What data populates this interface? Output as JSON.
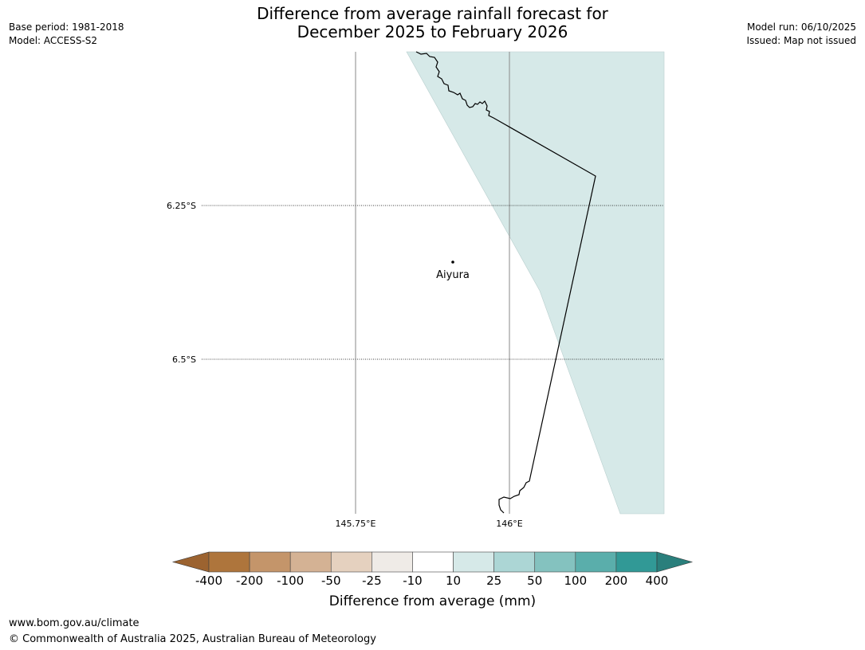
{
  "header": {
    "title_line1": "Difference from average rainfall forecast for",
    "title_line2": "December 2025 to February 2026",
    "base_period": "Base period: 1981-2018",
    "model": "Model: ACCESS-S2",
    "model_run": "Model run: 06/10/2025",
    "issued": "Issued: Map not issued"
  },
  "map": {
    "place_name": "Aiyura",
    "lon_labels": [
      "145.75°E",
      "146°E"
    ],
    "lat_labels": [
      "6.25°S",
      "6.5°S"
    ],
    "shade_color": "#d6e9e8"
  },
  "colorbar": {
    "title": "Difference from average (mm)",
    "ticks": [
      "-400",
      "-200",
      "-100",
      "-50",
      "-25",
      "-10",
      "10",
      "25",
      "50",
      "100",
      "200",
      "400"
    ],
    "colors": [
      "#9c6330",
      "#ae753c",
      "#c4956a",
      "#d4b294",
      "#e5d1bf",
      "#efebe7",
      "#ffffff",
      "#d6e9e8",
      "#acd6d5",
      "#84c2bf",
      "#5aaeab",
      "#319996",
      "#2a7f7c"
    ]
  },
  "footer": {
    "url": "www.bom.gov.au/climate",
    "copyright": "© Commonwealth of Australia 2025, Australian Bureau of Meteorology"
  }
}
